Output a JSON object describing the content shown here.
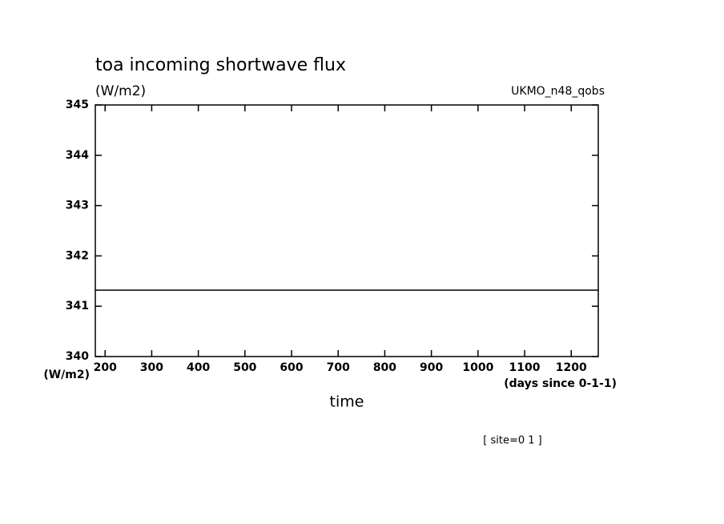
{
  "chart_data": {
    "type": "line",
    "title": "toa incoming shortwave flux",
    "ylabel": "(W/m2)",
    "dataset": "UKMO_n48_qobs",
    "y_units": "(W/m2)",
    "x_units": "(days since 0-1-1)",
    "xlabel": "time",
    "annotation": "[ site=0 1 ]",
    "x": [
      179,
      1258
    ],
    "series": [
      {
        "values": [
          341.32,
          341.32
        ],
        "color": "#000000"
      }
    ],
    "xlim": [
      179,
      1258
    ],
    "xticks": [
      200,
      300,
      400,
      500,
      600,
      700,
      800,
      900,
      1000,
      1100,
      1200
    ],
    "ylim": [
      340,
      345
    ],
    "yticks": [
      340,
      341,
      342,
      343,
      344,
      345
    ]
  }
}
